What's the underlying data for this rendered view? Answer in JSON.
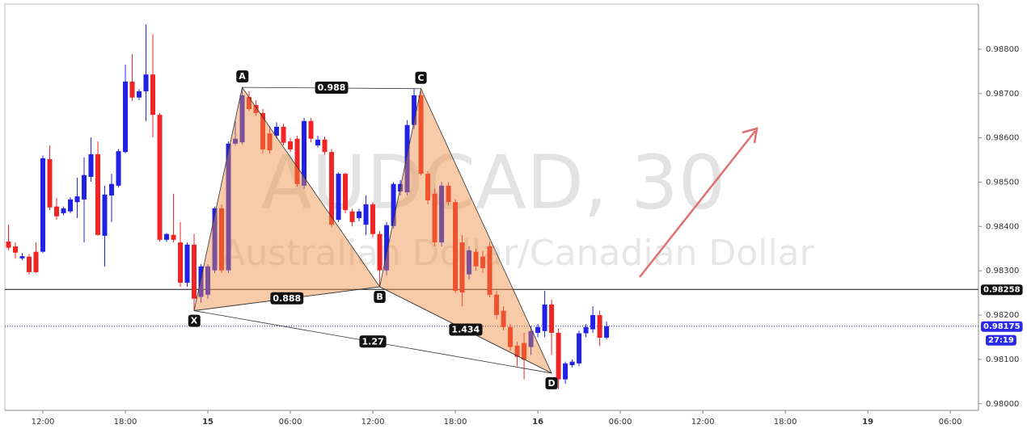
{
  "chart_data": {
    "type": "candlestick",
    "title": "AUDCAD, 30",
    "subtitle": "Australian Dollar/Canadian Dollar",
    "up_color": "#2121e6",
    "down_color": "#f02424",
    "pattern_color": "rgba(238,140,60,0.45)",
    "x": [
      -5,
      -4,
      -3,
      -2,
      -1,
      0,
      1,
      2,
      3,
      4,
      5,
      6,
      7,
      8,
      9,
      10,
      11,
      12,
      13,
      14,
      15,
      16,
      17,
      18,
      19,
      20,
      21,
      22,
      23,
      24,
      25,
      26,
      27,
      28,
      29,
      30,
      31,
      32,
      33,
      34,
      35,
      36,
      37,
      38,
      39,
      40,
      41,
      42,
      43,
      44,
      45,
      46,
      47,
      48,
      49,
      50,
      51,
      52,
      53,
      54,
      55,
      56,
      57,
      58,
      59,
      60,
      61,
      62,
      63,
      64,
      65,
      66,
      67,
      68,
      69,
      70,
      71,
      72,
      73,
      74,
      75,
      76,
      77,
      78,
      79,
      80,
      81,
      82
    ],
    "open": [
      0.98366,
      0.98355,
      0.98328,
      0.98332,
      0.98343,
      0.98343,
      0.98552,
      0.98445,
      0.9843,
      0.98434,
      0.98455,
      0.98461,
      0.98512,
      0.98563,
      0.98379,
      0.9847,
      0.98492,
      0.98568,
      0.98727,
      0.98691,
      0.98705,
      0.98743,
      0.98652,
      0.9837,
      0.98381,
      0.98364,
      0.98273,
      0.98359,
      0.98241,
      0.98246,
      0.98301,
      0.98441,
      0.98301,
      0.98587,
      0.9859,
      0.98692,
      0.98674,
      0.98656,
      0.9861,
      0.98605,
      0.98625,
      0.98592,
      0.98598,
      0.98492,
      0.98638,
      0.98583,
      0.98596,
      0.98568,
      0.98415,
      0.98519,
      0.98434,
      0.98419,
      0.98404,
      0.9845,
      0.98383,
      0.98301,
      0.98401,
      0.98479,
      0.98477,
      0.98629,
      0.98696,
      0.98519,
      0.98474,
      0.98364,
      0.98492,
      0.98455,
      0.98364,
      0.98292,
      0.98343,
      0.98332,
      0.98355,
      0.98246,
      0.9821,
      0.98173,
      0.98131,
      0.98137,
      0.98128,
      0.9816,
      0.98164,
      0.98224,
      0.9816,
      0.98055,
      0.98087,
      0.98091,
      0.98159,
      0.98168,
      0.982,
      0.98149
    ],
    "high": [
      0.98404,
      0.98364,
      0.9834,
      0.98338,
      0.98364,
      0.9856,
      0.98583,
      0.98465,
      0.98445,
      0.98466,
      0.9851,
      0.98556,
      0.98601,
      0.98592,
      0.98492,
      0.98519,
      0.98575,
      0.98765,
      0.98789,
      0.9871,
      0.98856,
      0.98834,
      0.98656,
      0.98385,
      0.98474,
      0.9841,
      0.98364,
      0.98383,
      0.98315,
      0.98315,
      0.98445,
      0.9845,
      0.98592,
      0.98638,
      0.98714,
      0.98705,
      0.98685,
      0.98665,
      0.98625,
      0.98635,
      0.98632,
      0.986,
      0.98605,
      0.98645,
      0.98645,
      0.98605,
      0.98603,
      0.98575,
      0.98522,
      0.98522,
      0.9844,
      0.9844,
      0.9847,
      0.98455,
      0.9839,
      0.9841,
      0.985,
      0.98505,
      0.9864,
      0.98711,
      0.98705,
      0.98525,
      0.98485,
      0.985,
      0.985,
      0.98462,
      0.9838,
      0.98355,
      0.9835,
      0.98345,
      0.98365,
      0.98255,
      0.9822,
      0.9818,
      0.9814,
      0.9816,
      0.98175,
      0.9818,
      0.98255,
      0.98235,
      0.9817,
      0.98095,
      0.981,
      0.98165,
      0.9818,
      0.9822,
      0.9821,
      0.98185
    ],
    "low": [
      0.98346,
      0.98328,
      0.98324,
      0.98292,
      0.98295,
      0.9834,
      0.98437,
      0.98415,
      0.98425,
      0.9843,
      0.98419,
      0.98364,
      0.98501,
      0.98379,
      0.9831,
      0.9841,
      0.98488,
      0.98565,
      0.98683,
      0.98685,
      0.98638,
      0.98601,
      0.98366,
      0.98365,
      0.98364,
      0.98264,
      0.98264,
      0.9821,
      0.98228,
      0.98237,
      0.98295,
      0.98295,
      0.98295,
      0.98583,
      0.98585,
      0.9866,
      0.9865,
      0.98565,
      0.98565,
      0.98598,
      0.98583,
      0.98568,
      0.9849,
      0.98485,
      0.9859,
      0.98578,
      0.98562,
      0.98398,
      0.9841,
      0.9843,
      0.984,
      0.98412,
      0.9838,
      0.98375,
      0.98264,
      0.9829,
      0.98395,
      0.9847,
      0.9847,
      0.9862,
      0.98515,
      0.9845,
      0.98355,
      0.98355,
      0.98448,
      0.9825,
      0.9822,
      0.9828,
      0.983,
      0.98295,
      0.9824,
      0.9819,
      0.98165,
      0.9812,
      0.98085,
      0.98055,
      0.9811,
      0.9815,
      0.9815,
      0.9811,
      0.98033,
      0.98045,
      0.98082,
      0.98085,
      0.9815,
      0.9816,
      0.9813,
      0.98145
    ],
    "close": [
      0.98352,
      0.98341,
      0.98333,
      0.98297,
      0.98297,
      0.98554,
      0.98443,
      0.98423,
      0.98441,
      0.98461,
      0.98468,
      0.98516,
      0.98563,
      0.98381,
      0.98472,
      0.98496,
      0.9857,
      0.98727,
      0.98691,
      0.98705,
      0.98743,
      0.98652,
      0.9837,
      0.98383,
      0.9837,
      0.98273,
      0.98359,
      0.98237,
      0.9831,
      0.9831,
      0.98441,
      0.98301,
      0.98587,
      0.98598,
      0.98696,
      0.98665,
      0.98656,
      0.98574,
      0.98572,
      0.98625,
      0.98589,
      0.98574,
      0.98496,
      0.98638,
      0.98598,
      0.98596,
      0.98568,
      0.98404,
      0.98519,
      0.98437,
      0.9841,
      0.98434,
      0.9845,
      0.98383,
      0.98301,
      0.98403,
      0.98496,
      0.98496,
      0.98629,
      0.98696,
      0.98519,
      0.98459,
      0.98364,
      0.98492,
      0.98455,
      0.98255,
      0.98251,
      0.98346,
      0.9831,
      0.98306,
      0.98246,
      0.982,
      0.98173,
      0.98128,
      0.98106,
      0.981,
      0.98164,
      0.98173,
      0.98224,
      0.9816,
      0.98055,
      0.98091,
      0.98095,
      0.98159,
      0.98173,
      0.982,
      0.98149,
      0.98175
    ],
    "xlim": [
      -5.53,
      136.1
    ],
    "xticks": [
      {
        "value": 0,
        "label": "12:00"
      },
      {
        "value": 12,
        "label": "18:00"
      },
      {
        "value": 24,
        "label": "15"
      },
      {
        "value": 36,
        "label": "06:00"
      },
      {
        "value": 48,
        "label": "12:00"
      },
      {
        "value": 60,
        "label": "18:00"
      },
      {
        "value": 72,
        "label": "16"
      },
      {
        "value": 84,
        "label": "06:00"
      },
      {
        "value": 96,
        "label": "12:00"
      },
      {
        "value": 108,
        "label": "18:00"
      },
      {
        "value": 120,
        "label": "19"
      },
      {
        "value": 132,
        "label": "06:00"
      }
    ],
    "ylim": [
      0.97985,
      0.98902
    ],
    "yticks": [
      {
        "value": 0.98,
        "label": "0.98000"
      },
      {
        "value": 0.981,
        "label": "0.98100"
      },
      {
        "value": 0.982,
        "label": "0.98200"
      },
      {
        "value": 0.983,
        "label": "0.98300"
      },
      {
        "value": 0.984,
        "label": "0.98400"
      },
      {
        "value": 0.985,
        "label": "0.98500"
      },
      {
        "value": 0.986,
        "label": "0.98600"
      },
      {
        "value": 0.987,
        "label": "0.98700"
      },
      {
        "value": 0.988,
        "label": "0.98800"
      }
    ],
    "price_line": 0.98258,
    "last_price": 0.98175,
    "countdown": "27:19",
    "points": [
      {
        "label": "X",
        "x": 22,
        "price": 0.9821
      },
      {
        "label": "A",
        "x": 29,
        "price": 0.98714
      },
      {
        "label": "B",
        "x": 49,
        "price": 0.98264
      },
      {
        "label": "C",
        "x": 55,
        "price": 0.98711
      },
      {
        "label": "D",
        "x": 74,
        "price": 0.98069
      }
    ],
    "legs": [
      {
        "ratio": 0.888,
        "from": 0,
        "to": 2
      },
      {
        "ratio": 0.988,
        "from": 1,
        "to": 3
      },
      {
        "ratio": 1.27,
        "from": 0,
        "to": 4
      },
      {
        "ratio": 1.434,
        "from": 2,
        "to": 4
      }
    ]
  }
}
